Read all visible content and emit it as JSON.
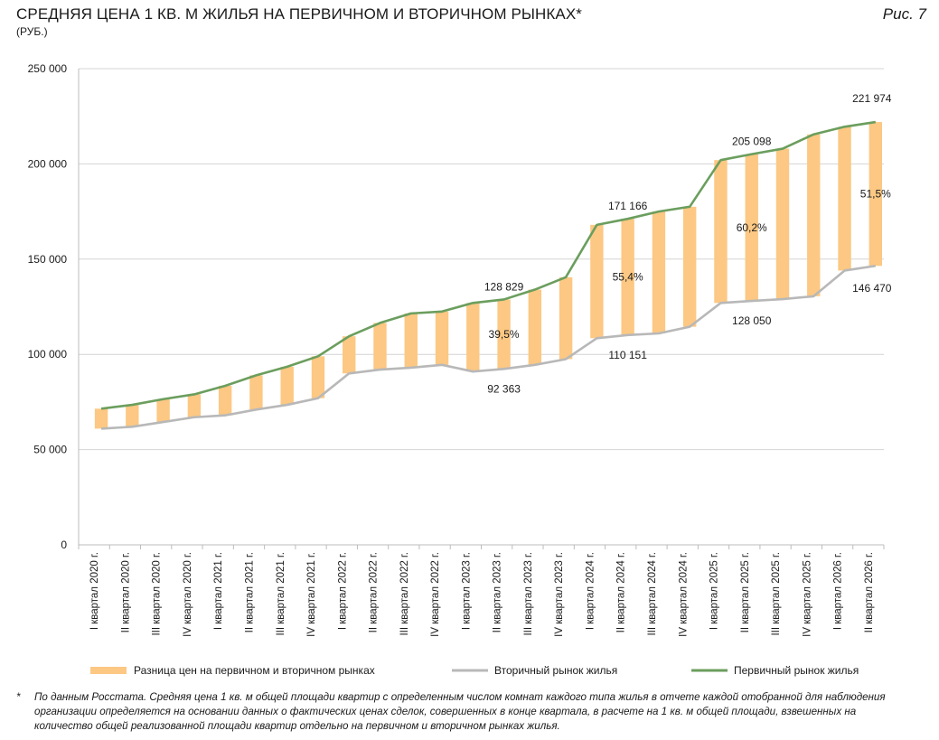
{
  "header": {
    "title": "СРЕДНЯЯ ЦЕНА 1 КВ. М ЖИЛЬЯ НА ПЕРВИЧНОМ И ВТОРИЧНОМ РЫНКАХ*",
    "unit": "(РУБ.)",
    "figure_label": "Рис. 7"
  },
  "footnote": {
    "marker": "*",
    "text": "По данным Росстата. Средняя цена 1 кв. м общей площади квартир с определенным числом комнат каждого типа жилья в отчете каждой отобранной для наблюдения организации определяется на основании данных о фактических ценах сделок, совершенных в конце квартала, в расчете на 1 кв. м общей площади, взвешенных на количество общей реализованной площади квартир отдельно на первичном и вторичном рынках жилья."
  },
  "chart_data": {
    "type": "bar",
    "ylim": [
      0,
      250000
    ],
    "yticks": [
      0,
      50000,
      100000,
      150000,
      200000,
      250000
    ],
    "ytick_labels": [
      "0",
      "50 000",
      "100 000",
      "150 000",
      "200 000",
      "250 000"
    ],
    "grid": true,
    "legend_position": "bottom",
    "colors": {
      "difference": "#fcc883",
      "secondary": "#b8b8b8",
      "primary": "#6b9e5e",
      "grid": "#d4d4d4",
      "axis": "#bcbcbc"
    },
    "categories": [
      "I квартал 2020 г.",
      "II квартал 2020 г.",
      "III квартал 2020 г.",
      "IV квартал 2020 г.",
      "I квартал 2021 г.",
      "II квартал 2021 г.",
      "III квартал 2021 г.",
      "IV квартал 2021 г.",
      "I квартал 2022 г.",
      "II квартал 2022 г.",
      "III квартал 2022 г.",
      "IV квартал 2022 г.",
      "I квартал 2023 г.",
      "II квартал 2023 г.",
      "III квартал 2023 г.",
      "IV квартал 2023 г.",
      "I квартал 2024 г.",
      "II квартал 2024 г.",
      "III квартал 2024 г.",
      "IV квартал 2024 г.",
      "I квартал 2025 г.",
      "II квартал 2025 г.",
      "III квартал 2025 г.",
      "IV квартал 2025 г.",
      "I квартал 2026 г.",
      "II квартал 2026 г."
    ],
    "series": [
      {
        "name": "Первичный рынок жилья",
        "values": [
          71500,
          73500,
          76500,
          79000,
          83500,
          89000,
          93500,
          99000,
          109500,
          116500,
          121500,
          122500,
          127000,
          128829,
          134000,
          140500,
          168000,
          171166,
          175000,
          177500,
          202000,
          205098,
          208000,
          215500,
          219500,
          221974
        ]
      },
      {
        "name": "Вторичный рынок жилья",
        "values": [
          61000,
          62000,
          64500,
          67000,
          68000,
          71000,
          73500,
          77000,
          90000,
          92000,
          93000,
          94500,
          91000,
          92363,
          94500,
          97500,
          108500,
          110151,
          111000,
          114500,
          127000,
          128050,
          129000,
          130500,
          144000,
          146470
        ]
      },
      {
        "name": "Разница цен на первичном и вторичном рынках"
      }
    ],
    "data_labels": [
      {
        "series": 0,
        "index": 13,
        "text": "128 829"
      },
      {
        "series": 0,
        "index": 17,
        "text": "171 166"
      },
      {
        "series": 0,
        "index": 21,
        "text": "205 098"
      },
      {
        "series": 0,
        "index": 25,
        "text": "221 974"
      },
      {
        "series": 1,
        "index": 13,
        "text": "92 363"
      },
      {
        "series": 1,
        "index": 17,
        "text": "110 151"
      },
      {
        "series": 1,
        "index": 21,
        "text": "128 050"
      },
      {
        "series": 1,
        "index": 25,
        "text": "146 470"
      }
    ],
    "percent_labels": [
      {
        "index": 13,
        "text": "39,5%"
      },
      {
        "index": 17,
        "text": "55,4%"
      },
      {
        "index": 21,
        "text": "60,2%"
      },
      {
        "index": 25,
        "text": "51,5%"
      }
    ]
  }
}
